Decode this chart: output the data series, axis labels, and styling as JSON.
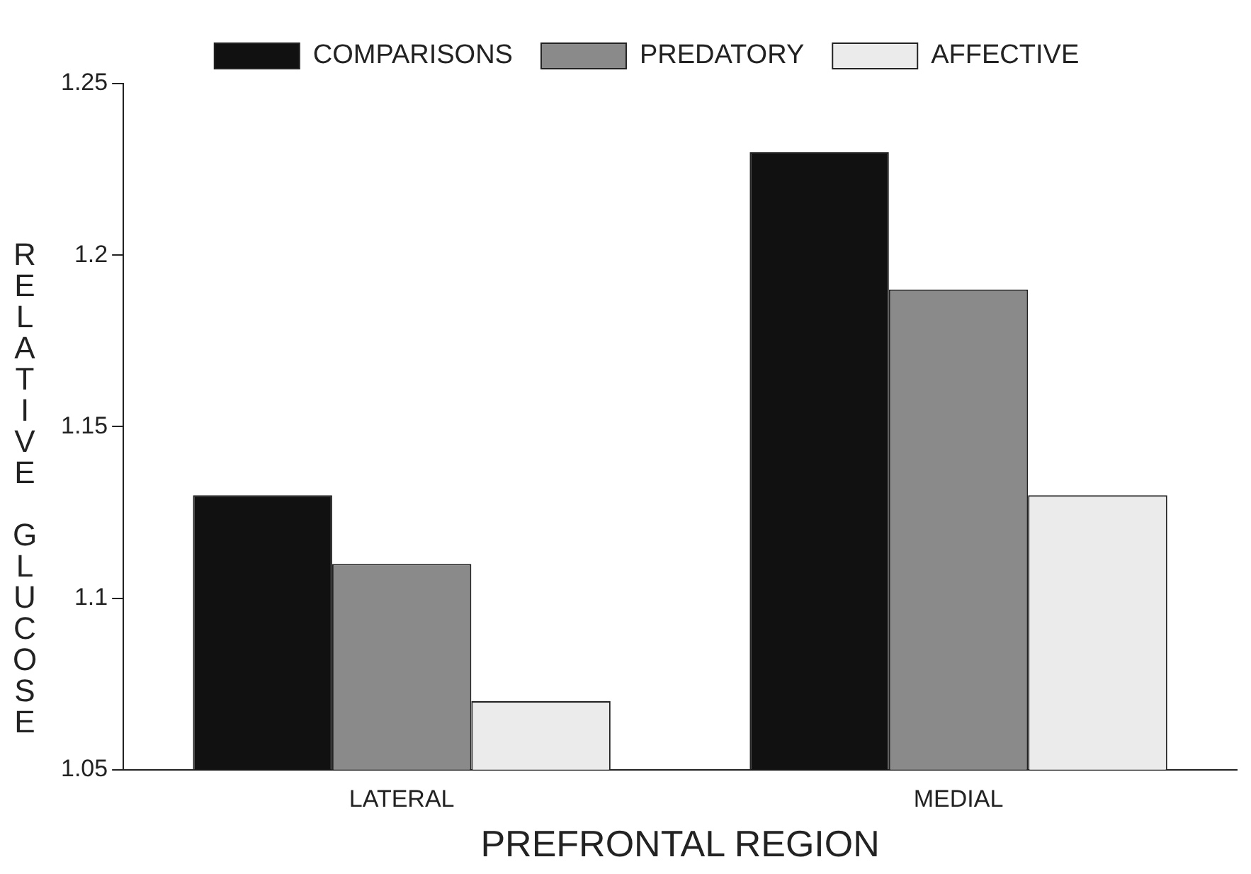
{
  "chart_data": {
    "type": "bar",
    "xlabel": "PREFRONTAL REGION",
    "ylabel": "RELATIVE GLUCOSE",
    "categories": [
      "LATERAL",
      "MEDIAL"
    ],
    "series": [
      {
        "name": "COMPARISONS",
        "color": "#111111",
        "values": [
          1.13,
          1.23
        ]
      },
      {
        "name": "PREDATORY",
        "color": "#8a8a8a",
        "values": [
          1.11,
          1.19
        ]
      },
      {
        "name": "AFFECTIVE",
        "color": "#ebebeb",
        "values": [
          1.07,
          1.13
        ]
      }
    ],
    "ylim": [
      1.05,
      1.25
    ],
    "yticks": [
      1.05,
      1.1,
      1.15,
      1.2,
      1.25
    ],
    "grid": false,
    "legend": "top"
  }
}
